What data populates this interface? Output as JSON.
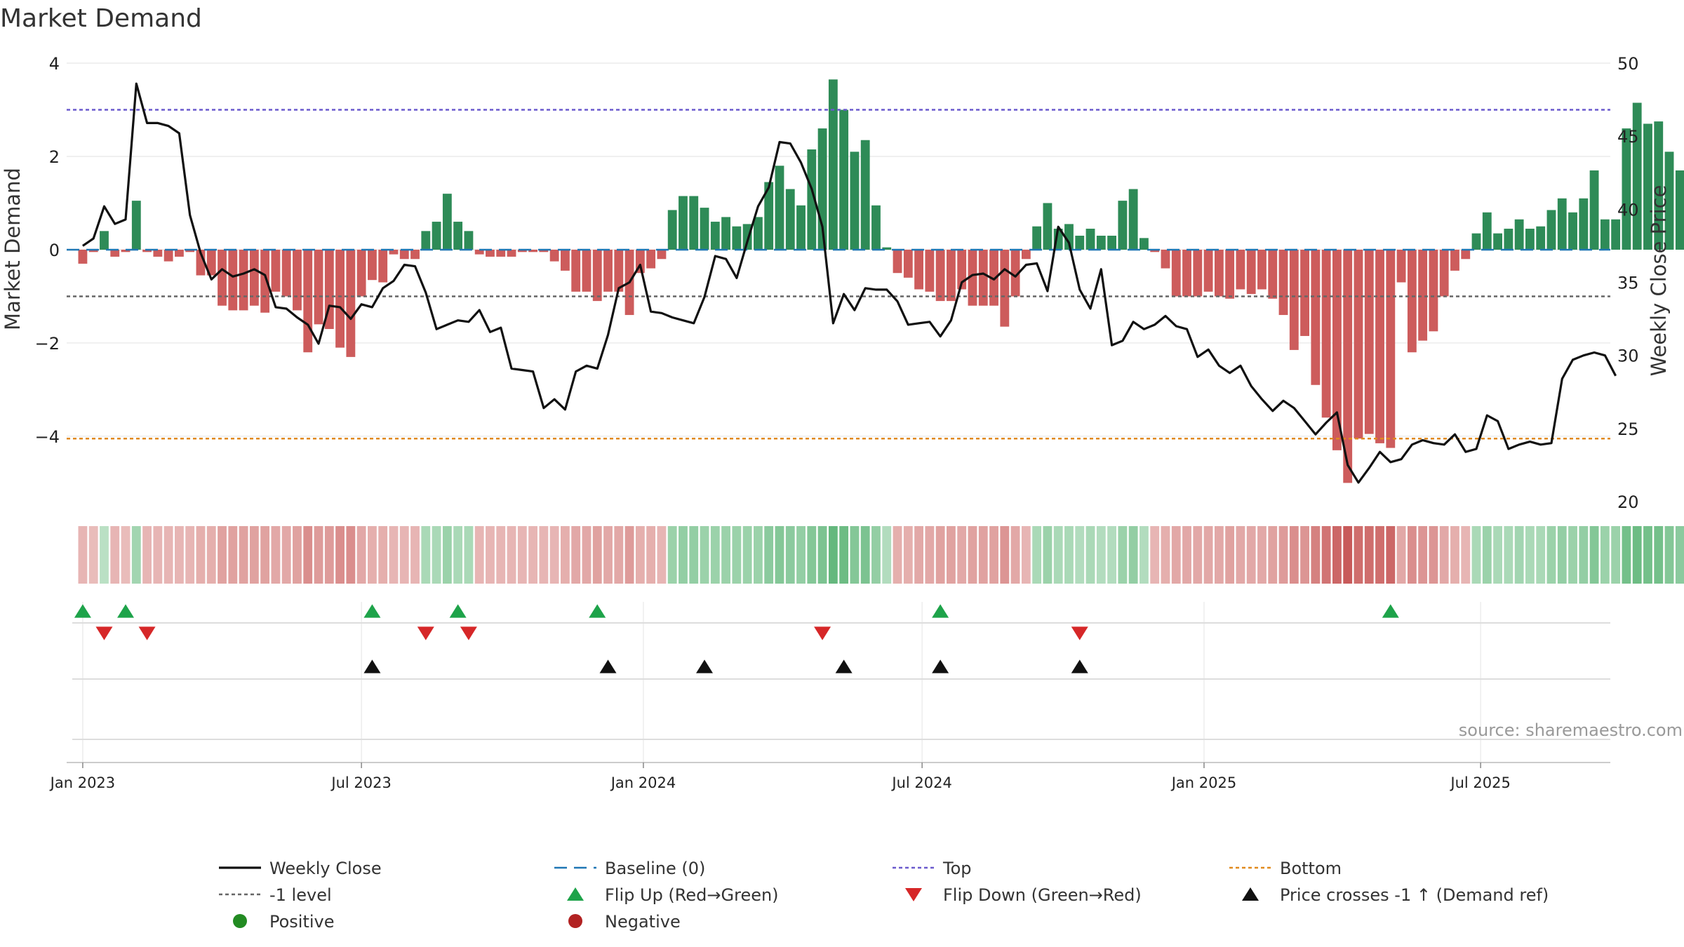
{
  "chart_data": {
    "type": "bar+line",
    "title": "Market Demand",
    "ylabel_left": "Market Demand",
    "ylabel_right": "Weekly Close Price",
    "ylim_left": [
      -5.4,
      4
    ],
    "ylim_right": [
      20,
      50
    ],
    "yticks_left": [
      {
        "value": 4,
        "label": "4"
      },
      {
        "value": 2,
        "label": "2"
      },
      {
        "value": 0,
        "label": "0"
      },
      {
        "value": -2,
        "label": "−2"
      },
      {
        "value": -4,
        "label": "−4"
      }
    ],
    "yticks_right": [
      {
        "value": 50,
        "label": "50"
      },
      {
        "value": 45,
        "label": "45"
      },
      {
        "value": 40,
        "label": "40"
      },
      {
        "value": 35,
        "label": "35"
      },
      {
        "value": 30,
        "label": "30"
      },
      {
        "value": 25,
        "label": "25"
      },
      {
        "value": 20,
        "label": "20"
      }
    ],
    "x_week_range": [
      -1.5,
      142.5
    ],
    "xticks": [
      {
        "week": 0,
        "label": "Jan 2023"
      },
      {
        "week": 26,
        "label": "Jul 2023"
      },
      {
        "week": 52.3,
        "label": "Jan 2024"
      },
      {
        "week": 78.3,
        "label": "Jul 2024"
      },
      {
        "week": 104.6,
        "label": "Jan 2025"
      },
      {
        "week": 130.4,
        "label": "Jul 2025"
      }
    ],
    "reference_lines": {
      "top": 3.0,
      "bottom": -4.05,
      "minus_one": -1.0,
      "baseline": 0
    },
    "colors": {
      "positive": "#2e8b57",
      "negative": "#cd5c5c",
      "close": "#111111",
      "baseline": "#1f77b4",
      "top": "#6a5acd",
      "bottom": "#e08a1e",
      "minus_one": "#666666",
      "flip_up": "#1ea34a",
      "flip_down": "#d62728",
      "cross": "#111111",
      "legend_positive": "#228b22",
      "legend_negative": "#b22222"
    },
    "demand": [
      -0.3,
      -0.05,
      0.4,
      -0.15,
      -0.05,
      1.05,
      -0.05,
      -0.15,
      -0.25,
      -0.15,
      -0.05,
      -0.55,
      -0.55,
      -1.2,
      -1.3,
      -1.3,
      -1.2,
      -1.35,
      -0.9,
      -1.0,
      -1.3,
      -2.2,
      -1.6,
      -1.7,
      -2.1,
      -2.3,
      -1.0,
      -0.65,
      -0.7,
      -0.1,
      -0.2,
      -0.2,
      0.4,
      0.6,
      1.2,
      0.6,
      0.4,
      -0.1,
      -0.15,
      -0.15,
      -0.15,
      -0.05,
      -0.05,
      -0.05,
      -0.25,
      -0.45,
      -0.9,
      -0.9,
      -1.1,
      -0.9,
      -0.9,
      -1.4,
      -0.5,
      -0.4,
      -0.2,
      0.85,
      1.15,
      1.15,
      0.9,
      0.6,
      0.7,
      0.5,
      0.55,
      0.7,
      1.45,
      1.8,
      1.3,
      0.95,
      2.15,
      2.6,
      3.65,
      3.0,
      2.1,
      2.35,
      0.95,
      0.05,
      -0.5,
      -0.6,
      -0.85,
      -0.9,
      -1.1,
      -1.1,
      -0.85,
      -1.2,
      -1.2,
      -1.2,
      -1.65,
      -1.0,
      -0.2,
      0.5,
      1.0,
      0.45,
      0.55,
      0.3,
      0.45,
      0.3,
      0.3,
      1.05,
      1.3,
      0.25,
      -0.05,
      -0.4,
      -1.0,
      -1.0,
      -1.0,
      -0.9,
      -1.0,
      -1.05,
      -0.85,
      -0.95,
      -0.85,
      -1.05,
      -1.4,
      -2.15,
      -1.85,
      -2.9,
      -3.6,
      -4.3,
      -5.0,
      -4.05,
      -3.95,
      -4.15,
      -4.25,
      -0.7,
      -2.2,
      -1.95,
      -1.75,
      -1.0,
      -0.45,
      -0.2,
      0.35,
      0.8,
      0.35,
      0.45,
      0.65,
      0.45,
      0.5,
      0.85,
      1.1,
      0.8,
      1.1,
      1.7,
      0.65,
      0.65,
      2.6,
      3.15,
      2.7,
      2.75,
      2.1,
      1.7
    ],
    "weekly_close": [
      37.5,
      38.0,
      40.2,
      39.0,
      39.3,
      48.6,
      45.9,
      45.9,
      45.7,
      45.2,
      39.6,
      37.0,
      35.2,
      35.9,
      35.4,
      35.6,
      35.9,
      35.5,
      33.3,
      33.2,
      32.6,
      32.1,
      30.8,
      33.4,
      33.3,
      32.5,
      33.5,
      33.3,
      34.6,
      35.1,
      36.2,
      36.1,
      34.3,
      31.8,
      32.1,
      32.4,
      32.3,
      33.1,
      31.6,
      31.9,
      29.1,
      29.0,
      28.9,
      26.4,
      27.0,
      26.3,
      28.9,
      29.3,
      29.1,
      31.4,
      34.6,
      35.0,
      36.2,
      33.0,
      32.9,
      32.6,
      32.4,
      32.2,
      34.0,
      36.8,
      36.6,
      35.3,
      37.8,
      40.2,
      41.5,
      44.6,
      44.5,
      43.2,
      41.4,
      38.8,
      32.2,
      34.2,
      33.1,
      34.6,
      34.5,
      34.5,
      33.7,
      32.1,
      32.2,
      32.3,
      31.3,
      32.4,
      35.0,
      35.5,
      35.6,
      35.2,
      35.9,
      35.4,
      36.2,
      36.3,
      34.4,
      38.8,
      37.7,
      34.5,
      33.2,
      35.9,
      30.7,
      31.0,
      32.3,
      31.8,
      32.1,
      32.7,
      32.0,
      31.8,
      29.9,
      30.4,
      29.3,
      28.8,
      29.3,
      27.9,
      27.0,
      26.2,
      26.9,
      26.4,
      25.5,
      24.6,
      25.4,
      26.1,
      22.5,
      21.3,
      22.3,
      23.4,
      22.7,
      22.9,
      23.9,
      24.2,
      24.0,
      23.9,
      24.6,
      23.4,
      23.6,
      25.9,
      25.5,
      23.6,
      23.9,
      24.1,
      23.9,
      24.0,
      28.4,
      29.7,
      30.0,
      30.2,
      30.0,
      28.6
    ],
    "heat_strip": [
      0.3,
      0.25,
      0.25,
      0.3,
      0.25,
      0.4,
      0.3,
      0.3,
      0.3,
      0.3,
      0.3,
      0.35,
      0.35,
      0.45,
      0.45,
      0.45,
      0.45,
      0.45,
      0.4,
      0.4,
      0.45,
      0.6,
      0.5,
      0.5,
      0.6,
      0.6,
      0.4,
      0.35,
      0.35,
      0.3,
      0.3,
      0.3,
      0.35,
      0.35,
      0.45,
      0.35,
      0.35,
      0.3,
      0.3,
      0.3,
      0.3,
      0.3,
      0.3,
      0.3,
      0.3,
      0.35,
      0.4,
      0.4,
      0.45,
      0.4,
      0.4,
      0.5,
      0.35,
      0.35,
      0.3,
      0.45,
      0.5,
      0.5,
      0.45,
      0.45,
      0.45,
      0.45,
      0.45,
      0.45,
      0.55,
      0.6,
      0.55,
      0.5,
      0.6,
      0.65,
      0.8,
      0.75,
      0.6,
      0.65,
      0.5,
      0.3,
      0.35,
      0.35,
      0.4,
      0.4,
      0.45,
      0.45,
      0.4,
      0.45,
      0.45,
      0.45,
      0.55,
      0.4,
      0.3,
      0.35,
      0.45,
      0.35,
      0.35,
      0.3,
      0.35,
      0.3,
      0.3,
      0.45,
      0.5,
      0.3,
      0.3,
      0.35,
      0.4,
      0.4,
      0.4,
      0.4,
      0.4,
      0.45,
      0.4,
      0.4,
      0.4,
      0.45,
      0.5,
      0.6,
      0.55,
      0.7,
      0.8,
      0.9,
      1.0,
      0.85,
      0.85,
      0.85,
      0.9,
      0.4,
      0.6,
      0.55,
      0.55,
      0.4,
      0.35,
      0.3,
      0.35,
      0.45,
      0.35,
      0.35,
      0.4,
      0.35,
      0.35,
      0.45,
      0.5,
      0.45,
      0.5,
      0.6,
      0.45,
      0.45,
      0.7,
      0.75,
      0.7,
      0.7,
      0.6,
      0.55
    ],
    "flip_up_weeks": [
      0,
      4,
      27,
      35,
      48,
      80,
      122
    ],
    "flip_down_weeks": [
      2,
      6,
      32,
      36,
      69,
      93
    ],
    "cross_weeks": [
      27,
      49,
      58,
      71,
      80,
      93
    ],
    "source_text": "source: sharemaestro.com",
    "legend": [
      {
        "key": "close",
        "label": "Weekly Close",
        "symbol": "line-solid"
      },
      {
        "key": "baseline",
        "label": "Baseline (0)",
        "symbol": "line-dash"
      },
      {
        "key": "top",
        "label": "Top",
        "symbol": "line-dot"
      },
      {
        "key": "bottom",
        "label": "Bottom",
        "symbol": "line-dot"
      },
      {
        "key": "minus_one",
        "label": "-1 level",
        "symbol": "line-dot"
      },
      {
        "key": "flip_up",
        "label": "Flip Up (Red→Green)",
        "symbol": "tri-up"
      },
      {
        "key": "flip_down",
        "label": "Flip Down (Green→Red)",
        "symbol": "tri-down"
      },
      {
        "key": "cross",
        "label": "Price crosses -1 ↑ (Demand ref)",
        "symbol": "tri-up"
      },
      {
        "key": "legend_positive",
        "label": "Positive",
        "symbol": "circle"
      },
      {
        "key": "legend_negative",
        "label": "Negative",
        "symbol": "circle"
      }
    ]
  }
}
